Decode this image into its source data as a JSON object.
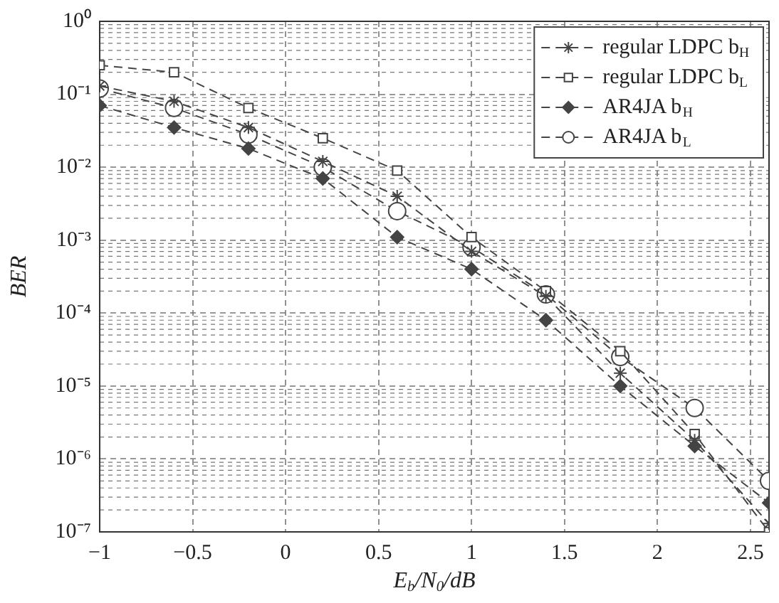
{
  "chart_data": {
    "type": "line",
    "xlabel": "E$_{b}$/N$_{0}$/dB",
    "ylabel": "BER",
    "log": "y",
    "grid": true,
    "legend": "top right",
    "line_style": "dashed",
    "x": [
      -1,
      -0.6,
      -0.2,
      0.2,
      0.6,
      1,
      1.4,
      1.8,
      2.2,
      2.6
    ],
    "xlim": [
      -1,
      2.6
    ],
    "xticks": [
      {
        "value": -1,
        "label": "−1"
      },
      {
        "value": -0.5,
        "label": "−0.5"
      },
      0,
      0.5,
      1,
      1.5,
      2,
      2.5
    ],
    "ylim": [
      1e-07,
      1
    ],
    "yticks": [
      {
        "value": 1e-07,
        "label": "10⁻⁷"
      },
      {
        "value": 1e-06,
        "label": "10⁻⁶"
      },
      {
        "value": 1e-05,
        "label": "10⁻⁵"
      },
      {
        "value": 0.0001,
        "label": "10⁻⁴"
      },
      {
        "value": 0.001,
        "label": "10⁻³"
      },
      {
        "value": 0.01,
        "label": "10⁻²"
      },
      {
        "value": 0.1,
        "label": "10⁻¹"
      },
      {
        "value": 1,
        "label": "10⁰"
      }
    ],
    "series": [
      {
        "name": "regular LDPC b$_{H}$",
        "color": "#444444",
        "marker": "cross",
        "values": [
          0.13,
          0.08,
          0.035,
          0.012,
          0.004,
          0.0007,
          0.00017,
          1.5e-05,
          1.8e-06,
          1.3e-07
        ]
      },
      {
        "name": "regular LDPC b$_{L}$",
        "color": "#444444",
        "marker": "square",
        "values": [
          0.25,
          0.2,
          0.065,
          0.025,
          0.009,
          0.0011,
          0.0002,
          3e-05,
          2.2e-06,
          1e-07
        ]
      },
      {
        "name": "AR4JA b$_{H}$",
        "color": "#444444",
        "marker": "diamond",
        "values": [
          0.07,
          0.035,
          0.018,
          0.007,
          0.0011,
          0.0004,
          8e-05,
          1e-05,
          1.5e-06,
          2.5e-07
        ]
      },
      {
        "name": "AR4JA b$_{L}$",
        "color": "#444444",
        "marker": "circle",
        "values": [
          0.12,
          0.065,
          0.028,
          0.01,
          0.0025,
          0.0008,
          0.00018,
          2.5e-05,
          5e-06,
          5e-07
        ]
      }
    ]
  }
}
